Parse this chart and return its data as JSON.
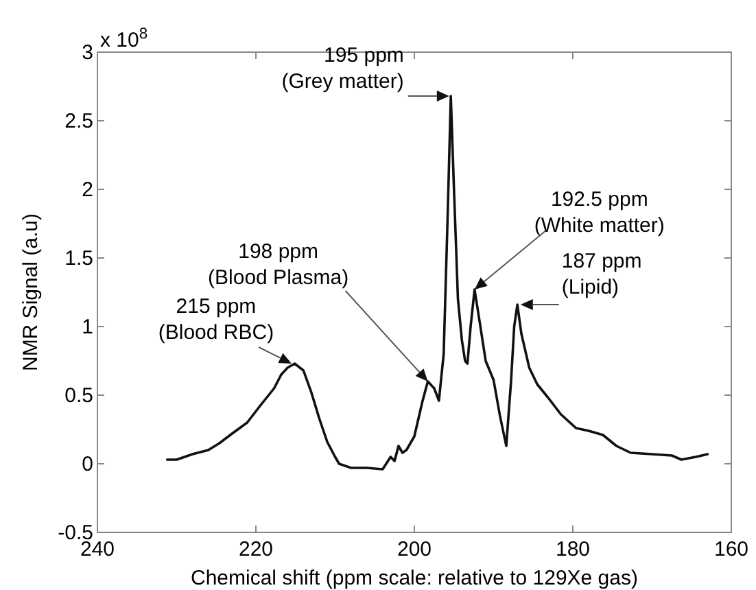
{
  "chart_data": {
    "type": "line",
    "xlabel": "Chemical shift (ppm scale: relative to 129Xe gas)",
    "ylabel": "NMR Signal (a.u)",
    "xlim": [
      240,
      160
    ],
    "xticks": [
      240,
      220,
      200,
      180,
      160
    ],
    "ylim": [
      -0.5,
      3
    ],
    "yticks": [
      -0.5,
      0,
      0.5,
      1,
      1.5,
      2,
      2.5,
      3
    ],
    "grid": false,
    "marker": "none",
    "line_style": "solid",
    "series": [
      {
        "color": "#111111",
        "x": [
          231.2,
          230,
          228,
          226,
          224.6,
          223,
          221.1,
          219.5,
          217.7,
          216.8,
          216,
          215.1,
          214,
          213,
          212,
          211,
          210,
          209.5,
          208,
          206,
          204,
          203,
          202.5,
          202,
          201.5,
          201,
          200,
          199,
          198.3,
          197.5,
          196.9,
          196.3,
          195.8,
          195.4,
          195,
          194.5,
          194,
          193.6,
          193.3,
          192.9,
          192.4,
          191.8,
          191,
          190,
          189.2,
          188.4,
          187.8,
          187.4,
          187,
          186.5,
          185.5,
          184.5,
          183.1,
          181.5,
          179.6,
          178,
          176.2,
          174.5,
          172.7,
          170,
          167.5,
          166.3,
          164.5,
          163
        ],
        "values": [
          0.03,
          0.03,
          0.07,
          0.1,
          0.15,
          0.22,
          0.3,
          0.42,
          0.55,
          0.65,
          0.7,
          0.73,
          0.68,
          0.52,
          0.33,
          0.16,
          0.05,
          0.0,
          -0.03,
          -0.03,
          -0.04,
          0.05,
          0.02,
          0.13,
          0.08,
          0.1,
          0.2,
          0.45,
          0.6,
          0.55,
          0.46,
          0.8,
          1.8,
          2.68,
          2.0,
          1.2,
          0.9,
          0.75,
          0.73,
          1.0,
          1.27,
          1.05,
          0.75,
          0.61,
          0.35,
          0.13,
          0.6,
          1.0,
          1.16,
          0.95,
          0.7,
          0.58,
          0.48,
          0.36,
          0.26,
          0.24,
          0.21,
          0.13,
          0.08,
          0.07,
          0.06,
          0.03,
          0.05,
          0.07
        ]
      }
    ],
    "annotations": [
      {
        "text": "215 ppm\n(Blood RBC)",
        "x": 215.5,
        "y": 0.73
      },
      {
        "text": "198 ppm\n(Blood Plasma)",
        "x": 198.3,
        "y": 0.6
      },
      {
        "text": "195 ppm\n(Grey matter)",
        "x": 195.6,
        "y": 2.68
      },
      {
        "text": "192.5 ppm\n(White matter)",
        "x": 192.4,
        "y": 1.27
      },
      {
        "text": "187 ppm\n(Lipid)",
        "x": 186.6,
        "y": 1.16
      },
      "x 10$^{8}$"
    ]
  }
}
